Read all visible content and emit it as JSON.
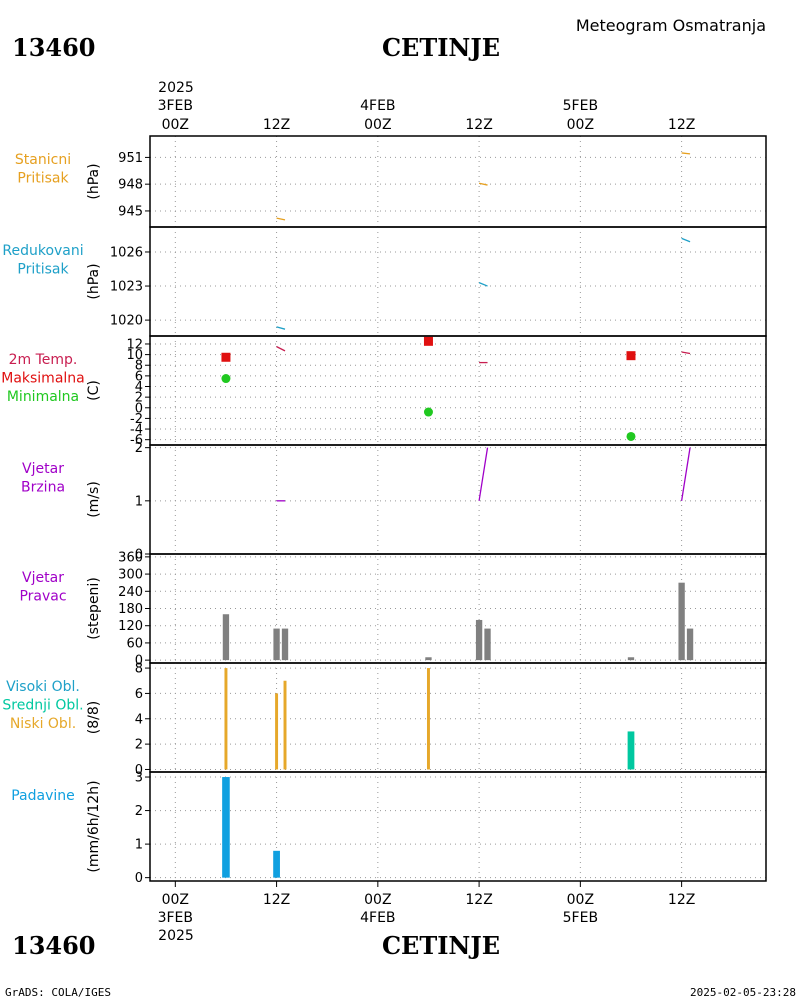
{
  "header": {
    "station_id": "13460",
    "station_name": "CETINJE",
    "subtitle": "Meteogram Osmatranja",
    "footer_left": "GrADS: COLA/IGES",
    "footer_right": "2025-02-05-23:28"
  },
  "colors": {
    "orange": "#e6a020",
    "cyan": "#1ea0c8",
    "red": "#e01010",
    "green": "#20c820",
    "purple": "#a000c8",
    "gray": "#808080",
    "teal": "#00c8a0",
    "blue": "#10a0e0",
    "amber": "#e6a82a"
  },
  "time_axis": {
    "year": "2025",
    "ticks": [
      {
        "t": 0,
        "top": "00Z",
        "day": "3FEB"
      },
      {
        "t": 12,
        "top": "12Z",
        "day": ""
      },
      {
        "t": 24,
        "top": "00Z",
        "day": "4FEB"
      },
      {
        "t": 36,
        "top": "12Z",
        "day": ""
      },
      {
        "t": 48,
        "top": "00Z",
        "day": "5FEB"
      },
      {
        "t": 60,
        "top": "12Z",
        "day": ""
      }
    ],
    "range": [
      -3,
      70
    ]
  },
  "chart_data": [
    {
      "type": "line",
      "name": "pressure_station",
      "labels": [
        "Stanicni",
        "Pritisak"
      ],
      "unit": "(hPa)",
      "ylim": [
        943.2,
        953.4
      ],
      "yticks": [
        945,
        948,
        951
      ],
      "series": [
        {
          "color": "orange",
          "segments": [
            {
              "x": [
                12,
                13
              ],
              "y": [
                944.2,
                944.0
              ]
            },
            {
              "x": [
                36,
                37
              ],
              "y": [
                948.1,
                947.9
              ]
            },
            {
              "x": [
                60,
                61
              ],
              "y": [
                951.5,
                951.4
              ]
            }
          ]
        }
      ]
    },
    {
      "type": "line",
      "name": "pressure_reduced",
      "labels": [
        "Redukovani",
        "Pritisak"
      ],
      "unit": "(hPa)",
      "ylim": [
        1018.6,
        1028.2
      ],
      "yticks": [
        1020,
        1023,
        1026
      ],
      "series": [
        {
          "color": "cyan",
          "segments": [
            {
              "x": [
                12,
                13
              ],
              "y": [
                1019.4,
                1019.2
              ]
            },
            {
              "x": [
                36,
                37
              ],
              "y": [
                1023.3,
                1023.0
              ]
            },
            {
              "x": [
                60,
                61
              ],
              "y": [
                1027.2,
                1026.9
              ]
            }
          ]
        }
      ]
    },
    {
      "type": "scatter",
      "name": "temperature",
      "labels": [
        "2m Temp.",
        "Maksimalna",
        "Minimalna"
      ],
      "label_colors": [
        "#c81e50",
        "red",
        "green"
      ],
      "unit": "(C)",
      "ylim": [
        -7,
        13.5
      ],
      "yticks": [
        -6,
        -4,
        -2,
        0,
        2,
        4,
        6,
        8,
        10,
        12
      ],
      "max_points": {
        "x": [
          6,
          30,
          54
        ],
        "y": [
          9.5,
          12.5,
          9.8
        ]
      },
      "min_points": {
        "x": [
          6,
          30,
          54
        ],
        "y": [
          5.5,
          -0.8,
          -5.4
        ]
      },
      "series": [
        {
          "color": "#c81e50",
          "segments": [
            {
              "x": [
                12,
                13
              ],
              "y": [
                11.5,
                10.7
              ]
            },
            {
              "x": [
                36,
                37
              ],
              "y": [
                8.5,
                8.5
              ]
            },
            {
              "x": [
                60,
                61
              ],
              "y": [
                10.5,
                10.2
              ]
            }
          ]
        }
      ]
    },
    {
      "type": "line",
      "name": "wind_speed",
      "labels": [
        "Vjetar",
        "Brzina"
      ],
      "unit": "(m/s)",
      "ylim": [
        0,
        2.05
      ],
      "yticks": [
        0,
        1,
        2
      ],
      "series": [
        {
          "color": "purple",
          "segments": [
            {
              "x": [
                12,
                13
              ],
              "y": [
                1.0,
                1.0
              ]
            },
            {
              "x": [
                36,
                37
              ],
              "y": [
                1.0,
                2.0
              ]
            },
            {
              "x": [
                60,
                61
              ],
              "y": [
                1.0,
                2.0
              ]
            }
          ]
        }
      ]
    },
    {
      "type": "bar",
      "name": "wind_direction",
      "labels": [
        "Vjetar",
        "Pravac"
      ],
      "unit": "(stepeni)",
      "ylim": [
        -10,
        370
      ],
      "yticks": [
        0,
        60,
        120,
        180,
        240,
        300,
        360
      ],
      "bars": [
        {
          "x": 6,
          "v": 160
        },
        {
          "x": 12,
          "v": 110
        },
        {
          "x": 13,
          "v": 110
        },
        {
          "x": 30,
          "v": 10
        },
        {
          "x": 36,
          "v": 140
        },
        {
          "x": 37,
          "v": 110
        },
        {
          "x": 54,
          "v": 10
        },
        {
          "x": 60,
          "v": 270
        },
        {
          "x": 61,
          "v": 110
        }
      ]
    },
    {
      "type": "bar",
      "name": "cloud_cover",
      "labels": [
        "Visoki Obl.",
        "Srednji Obl.",
        "Niski Obl."
      ],
      "label_colors": [
        "cyan",
        "teal",
        "amber"
      ],
      "unit": "(8/8)",
      "ylim": [
        -0.2,
        8.4
      ],
      "yticks": [
        0,
        2,
        4,
        6,
        8
      ],
      "bars": [
        {
          "x": 6,
          "v": 8,
          "color": "amber",
          "w": 0.35
        },
        {
          "x": 12,
          "v": 6,
          "color": "amber",
          "w": 0.35
        },
        {
          "x": 13,
          "v": 7,
          "color": "amber",
          "w": 0.35
        },
        {
          "x": 30,
          "v": 8,
          "color": "amber",
          "w": 0.35
        },
        {
          "x": 54,
          "v": 3,
          "color": "teal",
          "w": 0.8
        }
      ]
    },
    {
      "type": "bar",
      "name": "precipitation",
      "labels": [
        "Padavine"
      ],
      "unit": "(mm/6h/12h)",
      "ylim": [
        -0.1,
        3.15
      ],
      "yticks": [
        0,
        1,
        2,
        3
      ],
      "bars": [
        {
          "x": 6,
          "v": 3.0,
          "color": "blue",
          "w": 0.9
        },
        {
          "x": 12,
          "v": 0.8,
          "color": "blue",
          "w": 0.8
        }
      ]
    }
  ]
}
